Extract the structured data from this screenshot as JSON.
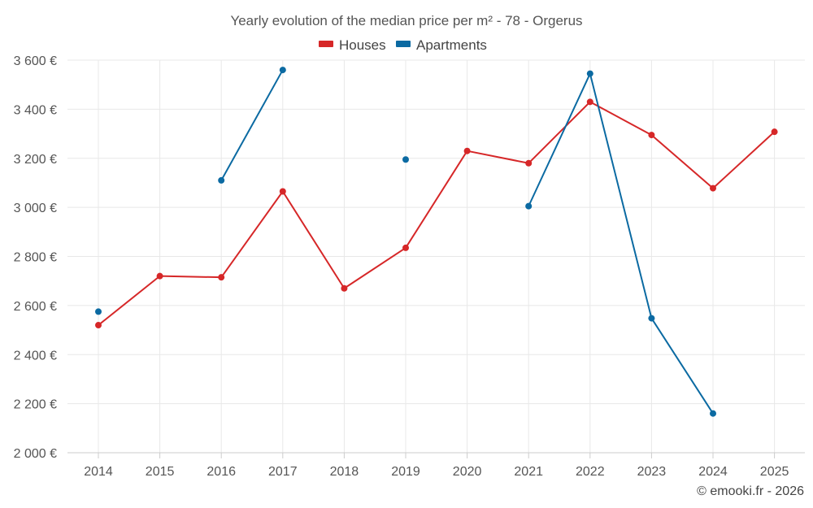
{
  "chart_data": {
    "type": "line",
    "title": "Yearly evolution of the median price per m² - 78 - Orgerus",
    "categories": [
      "2014",
      "2015",
      "2016",
      "2017",
      "2018",
      "2019",
      "2020",
      "2021",
      "2022",
      "2023",
      "2024",
      "2025"
    ],
    "y_ticks": [
      2000,
      2200,
      2400,
      2600,
      2800,
      3000,
      3200,
      3400,
      3600
    ],
    "y_tick_labels": [
      "2 000 €",
      "2 200 €",
      "2 400 €",
      "2 600 €",
      "2 800 €",
      "3 000 €",
      "3 200 €",
      "3 400 €",
      "3 600 €"
    ],
    "ylim": [
      2000,
      3600
    ],
    "grid": true,
    "legend_position": "top-center",
    "series": [
      {
        "name": "Houses",
        "color": "#d62728",
        "values": [
          2520,
          2720,
          2715,
          3065,
          2670,
          2835,
          3230,
          3180,
          3430,
          3295,
          3078,
          3308
        ]
      },
      {
        "name": "Apartments",
        "color": "#0b6aa2",
        "values": [
          2575,
          null,
          3110,
          3560,
          null,
          3195,
          null,
          3005,
          3545,
          2548,
          2160,
          null
        ]
      }
    ]
  },
  "credit": "© emooki.fr - 2026"
}
